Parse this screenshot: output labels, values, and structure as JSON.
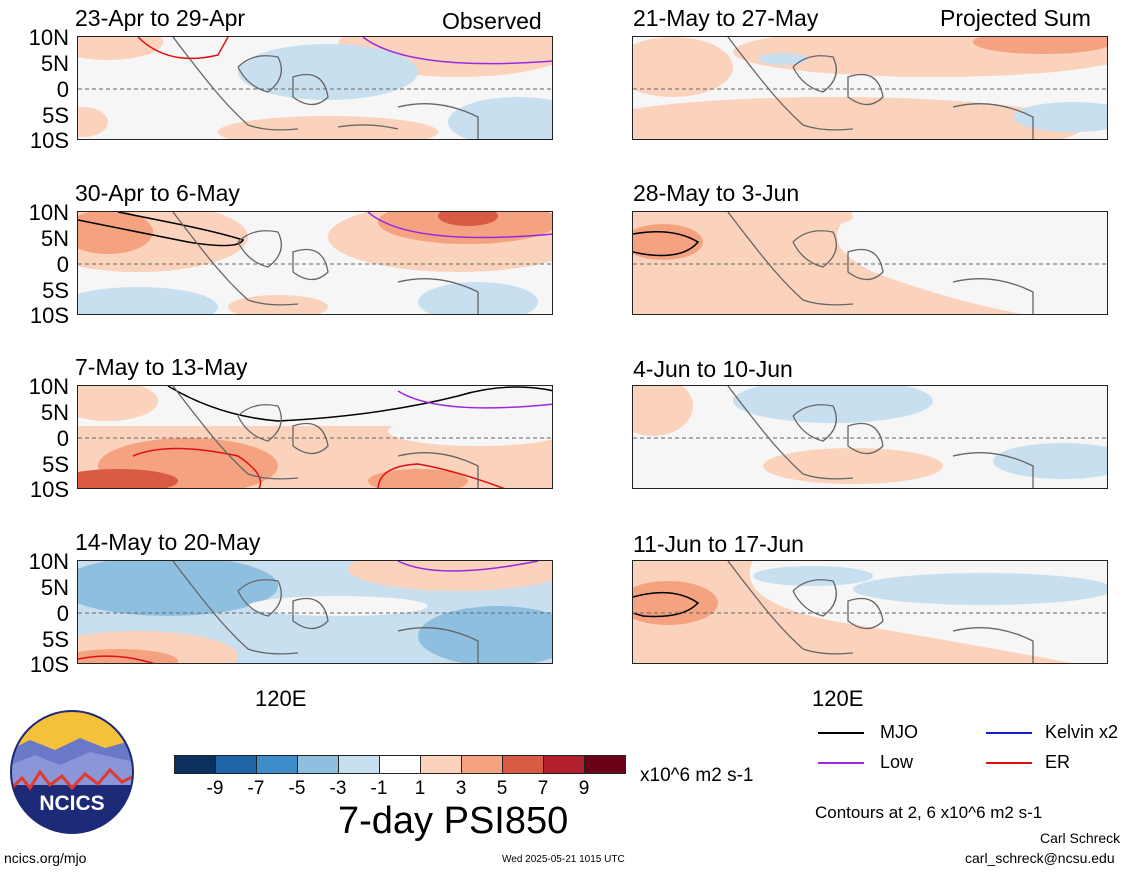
{
  "panels_left": [
    {
      "period": "23-Apr to 29-Apr",
      "tag": "Observed"
    },
    {
      "period": "30-Apr to 6-May",
      "tag": ""
    },
    {
      "period": "7-May to 13-May",
      "tag": ""
    },
    {
      "period": "14-May to 20-May",
      "tag": ""
    }
  ],
  "panels_right": [
    {
      "period": "21-May to 27-May",
      "tag": "Projected Sum"
    },
    {
      "period": "28-May to 3-Jun",
      "tag": ""
    },
    {
      "period": "4-Jun to 10-Jun",
      "tag": ""
    },
    {
      "period": "11-Jun to 17-Jun",
      "tag": ""
    }
  ],
  "lat_labels": [
    "10N",
    "5N",
    "0",
    "5S",
    "10S"
  ],
  "lon_label": "120E",
  "colorbar": {
    "ticks": [
      "-9",
      "-7",
      "-5",
      "-3",
      "-1",
      "1",
      "3",
      "5",
      "7",
      "9"
    ],
    "units": "x10^6 m2 s-1",
    "colors": [
      "#0b2f5e",
      "#1f63a8",
      "#3f8ccb",
      "#8ebfdf",
      "#c8dff0",
      "#ffffff",
      "#fbd2bc",
      "#f4a27f",
      "#d95b44",
      "#b0202b",
      "#6b0017"
    ]
  },
  "main_title": "7-day PSI850",
  "legend": [
    {
      "label": "MJO",
      "color": "#000000"
    },
    {
      "label": "Kelvin x2",
      "color": "#1020c8"
    },
    {
      "label": "Low",
      "color": "#9a28e0"
    },
    {
      "label": "ER",
      "color": "#e01010"
    }
  ],
  "contour_note": "Contours at 2, 6 x10^6 m2 s-1",
  "logo_text": "NCICS",
  "author": "Carl Schreck",
  "email": "carl_schreck@ncsu.edu",
  "site": "ncics.org/mjo",
  "timestamp": "Wed 2025-05-21 1015 UTC"
}
